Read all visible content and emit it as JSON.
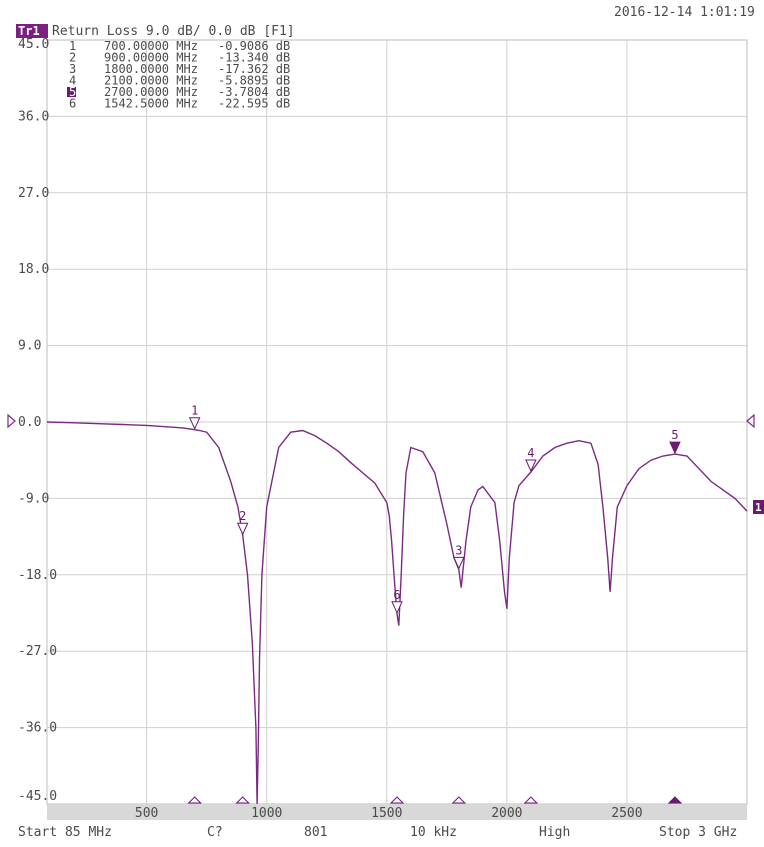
{
  "timestamp": "2016-12-14 1:01:19",
  "trace_header": {
    "trace_id": "Tr1",
    "text": "Return Loss 9.0 dB/ 0.0 dB [F1]"
  },
  "markers": [
    {
      "num": "1",
      "freq": "700.00000 MHz",
      "value": "-0.9086 dB",
      "active": false
    },
    {
      "num": "2",
      "freq": "900.00000 MHz",
      "value": "-13.340 dB",
      "active": false
    },
    {
      "num": "3",
      "freq": "1800.0000 MHz",
      "value": "-17.362 dB",
      "active": false
    },
    {
      "num": "4",
      "freq": "2100.0000 MHz",
      "value": "-5.8895 dB",
      "active": false
    },
    {
      "num": "5",
      "freq": "2700.0000 MHz",
      "value": "-3.7804 dB",
      "active": true
    },
    {
      "num": "6",
      "freq": "1542.5000 MHz",
      "value": "-22.595 dB",
      "active": false
    }
  ],
  "status_bar": {
    "start": "Start 85 MHz",
    "cal": "C?",
    "points": "801",
    "ifbw": "10 kHz",
    "power": "High",
    "stop": "Stop 3 GHz"
  },
  "right_edge_label": "1",
  "colors": {
    "trace": "#7a2a82",
    "marker_active": "#6b1a72",
    "grid": "#cfcfcf",
    "text": "#4b4b4b",
    "header_badge": "#7b1f80",
    "axis_band": "#d8d8d8"
  },
  "chart_data": {
    "type": "line",
    "title": "Return Loss 9.0 dB/ 0.0 dB [F1]",
    "xlabel": "",
    "ylabel": "",
    "xlim": [
      85,
      3000
    ],
    "ylim": [
      -45,
      45
    ],
    "y_ticks": [
      "45.0",
      "36.0",
      "27.0",
      "18.0",
      "9.0",
      "0.0",
      "-9.0",
      "-18.0",
      "-27.0",
      "-36.0",
      "-45.0"
    ],
    "y_tick_values": [
      45,
      36,
      27,
      18,
      9,
      0,
      -9,
      -18,
      -27,
      -36,
      -45
    ],
    "x_ticks": [
      "500",
      "1000",
      "1500",
      "2000",
      "2500"
    ],
    "x_tick_values": [
      500,
      1000,
      1500,
      2000,
      2500
    ],
    "grid": true,
    "series": [
      {
        "x": [
          85,
          200,
          300,
          400,
          500,
          600,
          650,
          700,
          720,
          750,
          800,
          850,
          880,
          900,
          920,
          940,
          955,
          960,
          965,
          970,
          980,
          1000,
          1050,
          1100,
          1150,
          1200,
          1250,
          1300,
          1350,
          1400,
          1450,
          1500,
          1510,
          1520,
          1530,
          1542.5,
          1550,
          1560,
          1570,
          1580,
          1600,
          1650,
          1700,
          1750,
          1780,
          1800,
          1810,
          1830,
          1850,
          1880,
          1900,
          1950,
          1970,
          1990,
          2000,
          2010,
          2030,
          2050,
          2100,
          2150,
          2200,
          2250,
          2300,
          2350,
          2380,
          2400,
          2420,
          2430,
          2440,
          2460,
          2500,
          2550,
          2600,
          2650,
          2700,
          2750,
          2800,
          2850,
          2900,
          2950,
          3000
        ],
        "y": [
          0.0,
          -0.1,
          -0.2,
          -0.3,
          -0.4,
          -0.6,
          -0.7,
          -0.91,
          -1.0,
          -1.2,
          -3.0,
          -7.0,
          -10.0,
          -13.34,
          -18.0,
          -26.0,
          -36.0,
          -45.0,
          -38.0,
          -28.0,
          -18.0,
          -10.0,
          -3.0,
          -1.2,
          -1.0,
          -1.6,
          -2.5,
          -3.5,
          -4.8,
          -6.0,
          -7.2,
          -9.5,
          -11.0,
          -14.0,
          -18.0,
          -22.6,
          -24.0,
          -18.0,
          -11.0,
          -6.0,
          -3.0,
          -3.5,
          -6.0,
          -12.0,
          -16.0,
          -17.36,
          -19.5,
          -14.0,
          -10.0,
          -8.0,
          -7.6,
          -9.5,
          -14.0,
          -20.0,
          -22.0,
          -16.0,
          -9.5,
          -7.5,
          -5.89,
          -4.0,
          -3.0,
          -2.5,
          -2.2,
          -2.5,
          -5.0,
          -10.0,
          -16.0,
          -20.0,
          -16.0,
          -10.0,
          -7.5,
          -5.5,
          -4.5,
          -4.0,
          -3.78,
          -4.0,
          -5.5,
          -7.0,
          -8.0,
          -9.0,
          -10.5
        ]
      }
    ]
  }
}
